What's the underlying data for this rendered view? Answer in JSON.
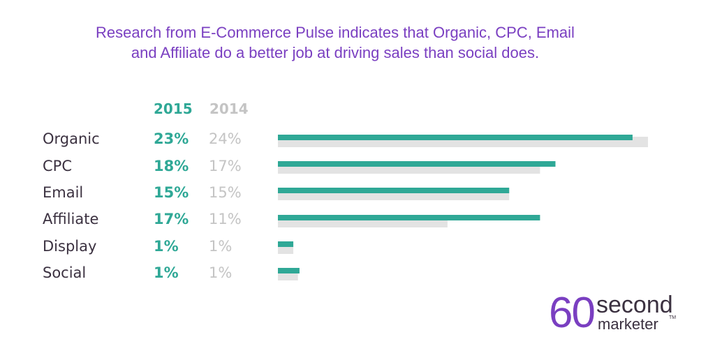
{
  "title_lines": [
    "Research from E-Commerce Pulse indicates that Organic, CPC, Email",
    "and Affiliate do a better job at driving sales than social does."
  ],
  "colors": {
    "series_2015": "#2fa896",
    "series_2014": "#e3e3e3",
    "title": "#7a3fc1"
  },
  "logo": {
    "number": "60",
    "word1": "second",
    "word2": "marketer",
    "tm": "TM"
  },
  "chart_data": {
    "type": "bar",
    "orientation": "horizontal",
    "categories": [
      "Organic",
      "CPC",
      "Email",
      "Affiliate",
      "Display",
      "Social"
    ],
    "series": [
      {
        "name": "2015",
        "labels": [
          "23%",
          "18%",
          "15%",
          "17%",
          "1%",
          "1%"
        ],
        "values": [
          23,
          18,
          15,
          17,
          1,
          1.4
        ]
      },
      {
        "name": "2014",
        "labels": [
          "24%",
          "17%",
          "15%",
          "11%",
          "1%",
          "1%"
        ],
        "values": [
          24,
          17,
          15,
          11,
          1,
          1.3
        ]
      }
    ],
    "xlim": [
      0,
      24
    ],
    "grid": false
  }
}
